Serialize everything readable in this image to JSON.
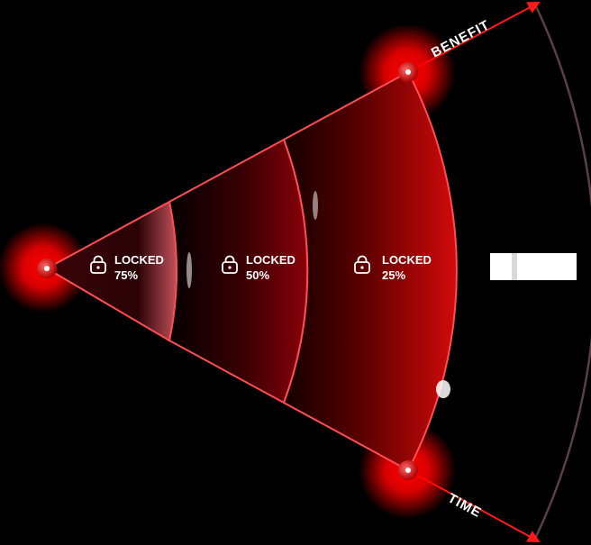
{
  "diagram": {
    "axes": {
      "top_label": "BENEFIT",
      "bottom_label": "TIME"
    },
    "segments": [
      {
        "status": "LOCKED",
        "percent": "75%",
        "icon": "lock-icon"
      },
      {
        "status": "LOCKED",
        "percent": "50%",
        "icon": "lock-icon"
      },
      {
        "status": "LOCKED",
        "percent": "25%",
        "icon": "lock-icon"
      }
    ],
    "colors": {
      "accent": "#ff1a1a",
      "fill_deep": "#8a0000",
      "fill_dark": "#1a0000",
      "edge": "#ff4d55",
      "outer_arc": "#5a4040",
      "text": "#ffffff"
    }
  }
}
